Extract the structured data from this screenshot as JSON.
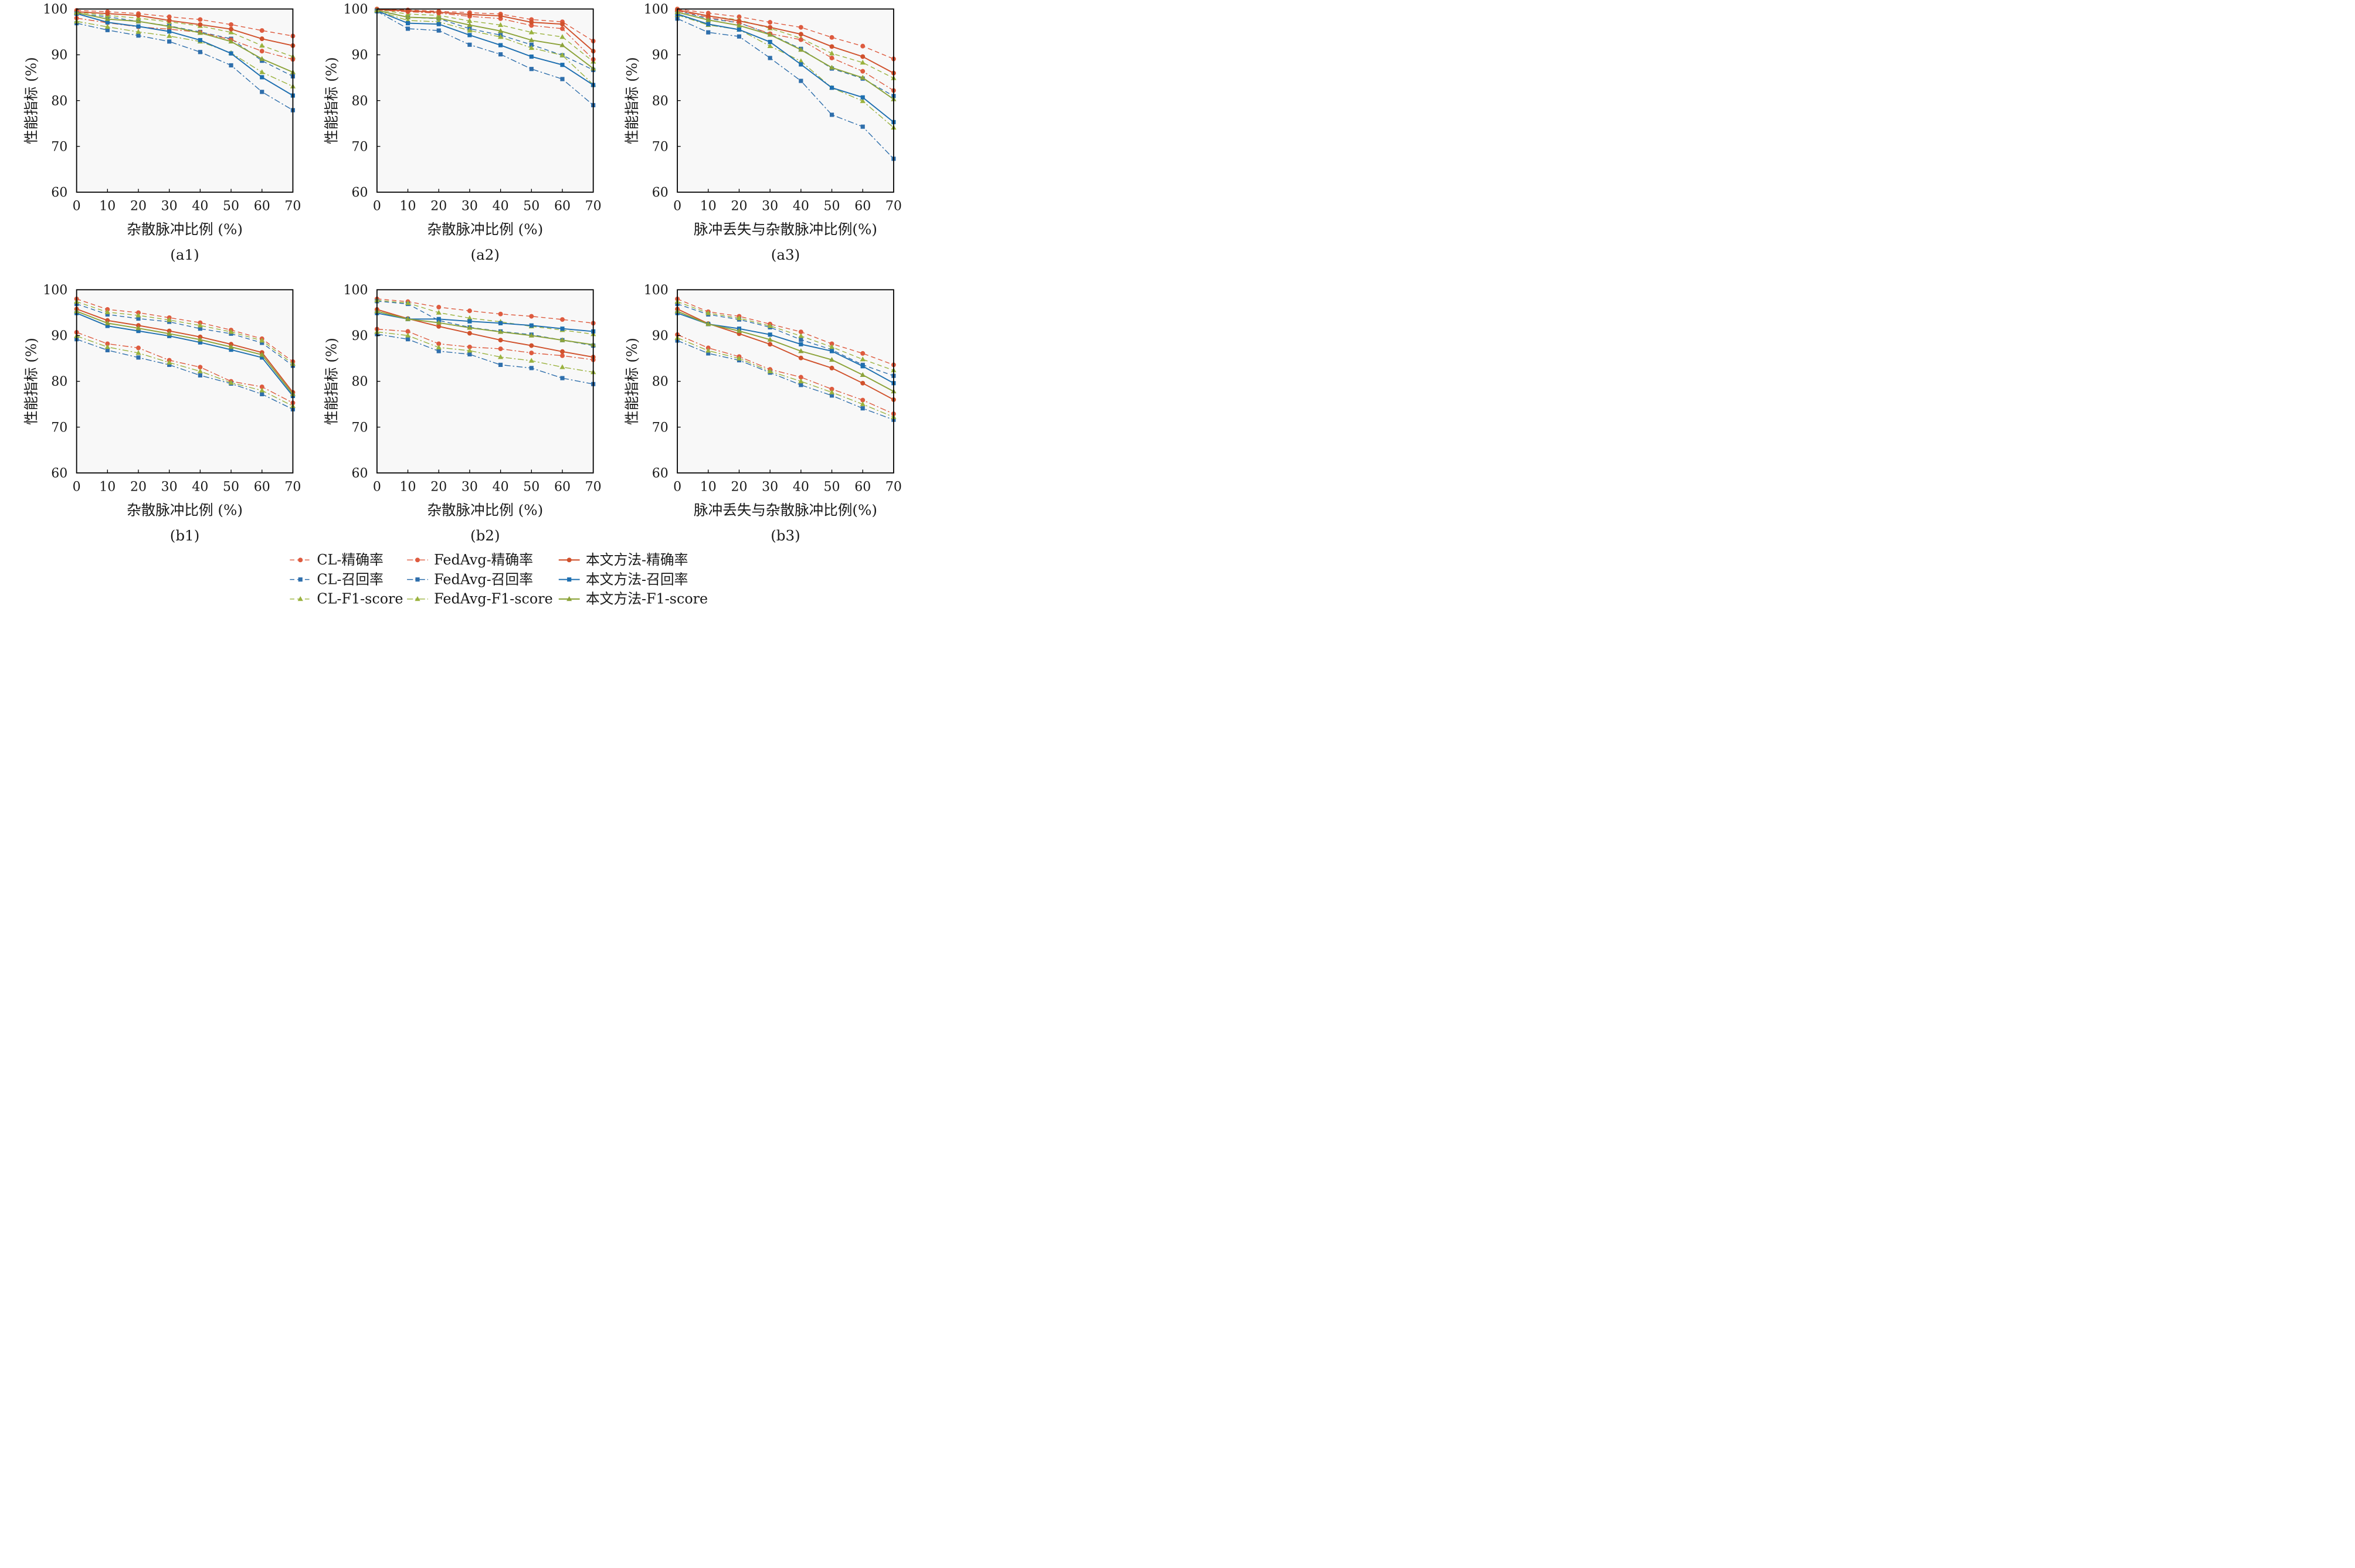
{
  "chart_data": [
    {
      "type": "line",
      "caption": "(a1)",
      "xlabel": "杂散脉冲比例 (%)",
      "ylabel": "性能指标 (%)",
      "x": [
        0,
        10,
        20,
        30,
        40,
        50,
        60,
        70
      ],
      "xlim": [
        0,
        70
      ],
      "ylim": [
        60,
        100
      ],
      "xticks": [
        "0",
        "10",
        "20",
        "30",
        "40",
        "50",
        "60",
        "70"
      ],
      "yticks": [
        "60",
        "70",
        "80",
        "90",
        "100"
      ],
      "series": [
        {
          "name": "CL-精确率",
          "values": [
            99.7,
            99.4,
            99.0,
            98.3,
            97.7,
            96.6,
            95.3,
            94.1
          ]
        },
        {
          "name": "CL-召回率",
          "values": [
            99.0,
            98.3,
            97.3,
            96.3,
            95.0,
            93.5,
            88.7,
            85.3
          ]
        },
        {
          "name": "CL-F1-score",
          "values": [
            99.3,
            98.6,
            98.0,
            97.2,
            96.3,
            94.9,
            92.0,
            89.6
          ]
        },
        {
          "name": "FedAvg-精确率",
          "values": [
            98.0,
            97.0,
            96.1,
            95.6,
            94.9,
            93.3,
            90.8,
            89.0
          ]
        },
        {
          "name": "FedAvg-召回率",
          "values": [
            96.9,
            95.4,
            94.2,
            92.9,
            90.6,
            87.7,
            81.9,
            77.9
          ]
        },
        {
          "name": "FedAvg-F1-score",
          "values": [
            97.3,
            96.1,
            95.0,
            94.1,
            92.9,
            90.4,
            86.2,
            83.1
          ]
        },
        {
          "name": "本文方法-精确率",
          "values": [
            99.4,
            99.0,
            98.6,
            97.5,
            96.6,
            95.6,
            93.5,
            92.0
          ]
        },
        {
          "name": "本文方法-召回率",
          "values": [
            99.0,
            97.1,
            96.2,
            95.1,
            93.2,
            90.3,
            85.1,
            81.1
          ]
        },
        {
          "name": "本文方法-F1-score",
          "values": [
            99.2,
            97.8,
            97.3,
            96.2,
            94.8,
            92.9,
            89.1,
            86.2
          ]
        }
      ]
    },
    {
      "type": "line",
      "caption": "(a2)",
      "xlabel": "杂散脉冲比例 (%)",
      "ylabel": "性能指标 (%)",
      "x": [
        0,
        10,
        20,
        30,
        40,
        50,
        60,
        70
      ],
      "xlim": [
        0,
        70
      ],
      "ylim": [
        60,
        100
      ],
      "xticks": [
        "0",
        "10",
        "20",
        "30",
        "40",
        "50",
        "60",
        "70"
      ],
      "yticks": [
        "60",
        "70",
        "80",
        "90",
        "100"
      ],
      "series": [
        {
          "name": "CL-精确率",
          "values": [
            100.0,
            99.8,
            99.5,
            99.2,
            98.9,
            97.7,
            97.2,
            93.0
          ]
        },
        {
          "name": "CL-召回率",
          "values": [
            99.8,
            98.2,
            97.9,
            95.7,
            94.3,
            92.2,
            89.9,
            86.7
          ]
        },
        {
          "name": "CL-F1-score",
          "values": [
            99.9,
            98.9,
            98.6,
            97.4,
            96.5,
            94.9,
            93.9,
            88.5
          ]
        },
        {
          "name": "FedAvg-精确率",
          "values": [
            99.8,
            99.4,
            99.1,
            98.4,
            97.9,
            96.4,
            95.7,
            89.0
          ]
        },
        {
          "name": "FedAvg-召回率",
          "values": [
            99.5,
            95.7,
            95.3,
            92.2,
            90.1,
            86.9,
            84.7,
            79.0
          ]
        },
        {
          "name": "FedAvg-F1-score",
          "values": [
            99.6,
            97.5,
            97.2,
            95.3,
            93.9,
            91.5,
            89.9,
            83.5
          ]
        },
        {
          "name": "本文方法-精确率",
          "values": [
            99.9,
            99.6,
            99.3,
            98.8,
            98.5,
            97.1,
            96.7,
            90.8
          ]
        },
        {
          "name": "本文方法-召回率",
          "values": [
            99.6,
            96.9,
            96.7,
            94.3,
            92.1,
            89.6,
            87.8,
            83.4
          ]
        },
        {
          "name": "本文方法-F1-score",
          "values": [
            99.7,
            98.2,
            98.0,
            96.5,
            95.2,
            93.2,
            92.1,
            87.0
          ]
        }
      ]
    },
    {
      "type": "line",
      "caption": "(a3)",
      "xlabel": "脉冲丢失与杂散脉冲比例(%)",
      "ylabel": "性能指标 (%)",
      "x": [
        0,
        10,
        20,
        30,
        40,
        50,
        60,
        70
      ],
      "xlim": [
        0,
        70
      ],
      "ylim": [
        60,
        100
      ],
      "xticks": [
        "0",
        "10",
        "20",
        "30",
        "40",
        "50",
        "60",
        "70"
      ],
      "yticks": [
        "60",
        "70",
        "80",
        "90",
        "100"
      ],
      "series": [
        {
          "name": "CL-精确率",
          "values": [
            100.0,
            99.1,
            98.3,
            97.1,
            96.0,
            93.8,
            91.9,
            89.1
          ]
        },
        {
          "name": "CL-召回率",
          "values": [
            99.6,
            97.9,
            97.0,
            94.5,
            91.3,
            87.0,
            84.8,
            81.0
          ]
        },
        {
          "name": "CL-F1-score",
          "values": [
            99.8,
            98.5,
            97.6,
            95.8,
            93.6,
            90.3,
            88.3,
            84.9
          ]
        },
        {
          "name": "FedAvg-精确率",
          "values": [
            99.6,
            98.2,
            97.0,
            94.6,
            93.3,
            89.3,
            86.4,
            82.2
          ]
        },
        {
          "name": "FedAvg-召回率",
          "values": [
            97.9,
            94.9,
            94.0,
            89.3,
            84.3,
            76.9,
            74.3,
            67.3
          ]
        },
        {
          "name": "FedAvg-F1-score",
          "values": [
            98.7,
            96.5,
            95.5,
            91.9,
            88.6,
            82.8,
            79.9,
            74.1
          ]
        },
        {
          "name": "本文方法-精确率",
          "values": [
            99.8,
            98.5,
            97.4,
            96.0,
            94.5,
            91.8,
            89.6,
            86.0
          ]
        },
        {
          "name": "本文方法-召回率",
          "values": [
            98.9,
            96.7,
            95.5,
            92.8,
            87.9,
            82.8,
            80.7,
            75.3
          ]
        },
        {
          "name": "本文方法-F1-score",
          "values": [
            99.3,
            97.6,
            96.4,
            94.4,
            91.1,
            87.2,
            85.0,
            80.3
          ]
        }
      ]
    },
    {
      "type": "line",
      "caption": "(b1)",
      "xlabel": "杂散脉冲比例 (%)",
      "ylabel": "性能指标 (%)",
      "x": [
        0,
        10,
        20,
        30,
        40,
        50,
        60,
        70
      ],
      "xlim": [
        0,
        70
      ],
      "ylim": [
        60,
        100
      ],
      "xticks": [
        "0",
        "10",
        "20",
        "30",
        "40",
        "50",
        "60",
        "70"
      ],
      "yticks": [
        "60",
        "70",
        "80",
        "90",
        "100"
      ],
      "series": [
        {
          "name": "CL-精确率",
          "values": [
            98.0,
            95.7,
            95.0,
            93.9,
            92.8,
            91.2,
            89.3,
            84.3
          ]
        },
        {
          "name": "CL-召回率",
          "values": [
            96.9,
            94.6,
            93.7,
            93.0,
            91.5,
            90.4,
            88.4,
            83.4
          ]
        },
        {
          "name": "CL-F1-score",
          "values": [
            97.4,
            95.1,
            94.4,
            93.4,
            92.2,
            90.8,
            88.9,
            83.8
          ]
        },
        {
          "name": "FedAvg-精确率",
          "values": [
            90.7,
            88.2,
            87.3,
            84.6,
            83.1,
            80.0,
            78.8,
            75.3
          ]
        },
        {
          "name": "FedAvg-召回率",
          "values": [
            89.2,
            86.8,
            85.2,
            83.6,
            81.3,
            79.5,
            77.2,
            73.9
          ]
        },
        {
          "name": "FedAvg-F1-score",
          "values": [
            89.9,
            87.5,
            86.2,
            84.1,
            82.2,
            79.7,
            78.0,
            74.6
          ]
        },
        {
          "name": "本文方法-精确率",
          "values": [
            95.8,
            93.3,
            92.2,
            91.0,
            89.7,
            88.1,
            86.3,
            77.6
          ]
        },
        {
          "name": "本文方法-召回率",
          "values": [
            94.9,
            92.1,
            91.0,
            89.9,
            88.5,
            86.9,
            85.2,
            76.8
          ]
        },
        {
          "name": "本文方法-F1-score",
          "values": [
            95.3,
            92.7,
            91.6,
            90.4,
            89.1,
            87.5,
            85.8,
            77.2
          ]
        }
      ]
    },
    {
      "type": "line",
      "caption": "(b2)",
      "xlabel": "杂散脉冲比例 (%)",
      "ylabel": "性能指标 (%)",
      "x": [
        0,
        10,
        20,
        30,
        40,
        50,
        60,
        70
      ],
      "xlim": [
        0,
        70
      ],
      "ylim": [
        60,
        100
      ],
      "xticks": [
        "0",
        "10",
        "20",
        "30",
        "40",
        "50",
        "60",
        "70"
      ],
      "yticks": [
        "60",
        "70",
        "80",
        "90",
        "100"
      ],
      "series": [
        {
          "name": "CL-精确率",
          "values": [
            98.0,
            97.4,
            96.2,
            95.4,
            94.7,
            94.2,
            93.5,
            92.7
          ]
        },
        {
          "name": "CL-召回率",
          "values": [
            97.5,
            96.9,
            93.3,
            91.8,
            90.9,
            90.2,
            89.0,
            87.8
          ]
        },
        {
          "name": "CL-F1-score",
          "values": [
            97.7,
            97.1,
            95.0,
            93.8,
            93.0,
            92.0,
            91.2,
            90.3
          ]
        },
        {
          "name": "FedAvg-精确率",
          "values": [
            91.4,
            90.9,
            88.2,
            87.5,
            87.1,
            86.2,
            85.6,
            84.7
          ]
        },
        {
          "name": "FedAvg-召回率",
          "values": [
            90.3,
            89.2,
            86.6,
            85.9,
            83.6,
            82.9,
            80.7,
            79.4
          ]
        },
        {
          "name": "FedAvg-F1-score",
          "values": [
            90.8,
            90.0,
            87.4,
            86.7,
            85.3,
            84.5,
            83.1,
            82.0
          ]
        },
        {
          "name": "本文方法-精确率",
          "values": [
            95.7,
            93.7,
            92.0,
            90.5,
            89.0,
            87.8,
            86.5,
            85.3
          ]
        },
        {
          "name": "本文方法-召回率",
          "values": [
            94.9,
            93.6,
            93.6,
            93.1,
            92.7,
            92.2,
            91.5,
            90.9
          ]
        },
        {
          "name": "本文方法-F1-score",
          "values": [
            95.3,
            93.6,
            92.8,
            91.7,
            90.8,
            90.0,
            89.0,
            88.0
          ]
        }
      ]
    },
    {
      "type": "line",
      "caption": "(b3)",
      "xlabel": "脉冲丢失与杂散脉冲比例(%)",
      "ylabel": "性能指标 (%)",
      "x": [
        0,
        10,
        20,
        30,
        40,
        50,
        60,
        70
      ],
      "xlim": [
        0,
        70
      ],
      "ylim": [
        60,
        100
      ],
      "xticks": [
        "0",
        "10",
        "20",
        "30",
        "40",
        "50",
        "60",
        "70"
      ],
      "yticks": [
        "60",
        "70",
        "80",
        "90",
        "100"
      ],
      "series": [
        {
          "name": "CL-精确率",
          "values": [
            98.0,
            95.2,
            94.2,
            92.5,
            90.8,
            88.2,
            86.1,
            83.6
          ]
        },
        {
          "name": "CL-召回率",
          "values": [
            96.9,
            94.6,
            93.5,
            91.8,
            89.1,
            86.9,
            83.6,
            81.2
          ]
        },
        {
          "name": "CL-F1-score",
          "values": [
            97.4,
            94.9,
            93.8,
            92.1,
            89.9,
            87.5,
            84.8,
            82.4
          ]
        },
        {
          "name": "FedAvg-精确率",
          "values": [
            90.2,
            87.3,
            85.4,
            82.6,
            80.9,
            78.3,
            75.9,
            72.9
          ]
        },
        {
          "name": "FedAvg-召回率",
          "values": [
            88.9,
            86.1,
            84.6,
            81.9,
            79.2,
            76.9,
            74.1,
            71.6
          ]
        },
        {
          "name": "FedAvg-F1-score",
          "values": [
            89.5,
            86.7,
            85.0,
            82.2,
            80.0,
            77.6,
            75.0,
            72.2
          ]
        },
        {
          "name": "本文方法-精确率",
          "values": [
            95.8,
            92.6,
            90.4,
            88.1,
            85.1,
            82.9,
            79.6,
            76.0
          ]
        },
        {
          "name": "本文方法-召回率",
          "values": [
            94.9,
            92.5,
            91.5,
            90.2,
            88.1,
            86.6,
            83.3,
            79.6
          ]
        },
        {
          "name": "本文方法-F1-score",
          "values": [
            95.3,
            92.5,
            91.0,
            89.1,
            86.6,
            84.7,
            81.4,
            77.8
          ]
        }
      ]
    }
  ],
  "series_style": [
    {
      "color": "#de5b3f",
      "marker": "circle",
      "dash": "dash"
    },
    {
      "color": "#2f6fac",
      "marker": "square",
      "dash": "dash"
    },
    {
      "color": "#9ab23e",
      "marker": "triangle",
      "dash": "dash"
    },
    {
      "color": "#de5b3f",
      "marker": "circle",
      "dash": "dashdot"
    },
    {
      "color": "#2f6fac",
      "marker": "square",
      "dash": "dashdot"
    },
    {
      "color": "#9ab23e",
      "marker": "triangle",
      "dash": "dashdot"
    },
    {
      "color": "#d0512c",
      "marker": "circle",
      "dash": "solid"
    },
    {
      "color": "#1e6fb0",
      "marker": "square",
      "dash": "solid"
    },
    {
      "color": "#8ca33a",
      "marker": "triangle",
      "dash": "solid"
    }
  ],
  "legend": {
    "entries": [
      "CL-精确率",
      "FedAvg-精确率",
      "本文方法-精确率",
      "CL-召回率",
      "FedAvg-召回率",
      "本文方法-召回率",
      "CL-F1-score",
      "FedAvg-F1-score",
      "本文方法-F1-score"
    ]
  }
}
